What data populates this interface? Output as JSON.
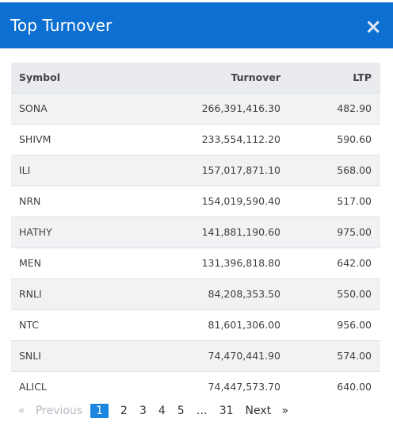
{
  "modal": {
    "title": "Top Turnover",
    "close_symbol": "×"
  },
  "table": {
    "headers": {
      "symbol": "Symbol",
      "turnover": "Turnover",
      "ltp": "LTP"
    },
    "rows": [
      {
        "symbol": "SONA",
        "turnover": "266,391,416.30",
        "ltp": "482.90"
      },
      {
        "symbol": "SHIVM",
        "turnover": "233,554,112.20",
        "ltp": "590.60"
      },
      {
        "symbol": "ILI",
        "turnover": "157,017,871.10",
        "ltp": "568.00"
      },
      {
        "symbol": "NRN",
        "turnover": "154,019,590.40",
        "ltp": "517.00"
      },
      {
        "symbol": "HATHY",
        "turnover": "141,881,190.60",
        "ltp": "975.00"
      },
      {
        "symbol": "MEN",
        "turnover": "131,396,818.80",
        "ltp": "642.00"
      },
      {
        "symbol": "RNLI",
        "turnover": "84,208,353.50",
        "ltp": "550.00"
      },
      {
        "symbol": "NTC",
        "turnover": "81,601,306.00",
        "ltp": "956.00"
      },
      {
        "symbol": "SNLI",
        "turnover": "74,470,441.90",
        "ltp": "574.00"
      },
      {
        "symbol": "ALICL",
        "turnover": "74,447,573.70",
        "ltp": "640.00"
      }
    ]
  },
  "pagination": {
    "prev_arrow": "«",
    "prev_label": "Previous",
    "pages": [
      "1",
      "2",
      "3",
      "4",
      "5"
    ],
    "ellipsis": "…",
    "last_page": "31",
    "next_label": "Next",
    "next_arrow": "»",
    "current_page": "1"
  },
  "colors": {
    "header_bg": "#0d6fd1",
    "active_page": "#1a86e0",
    "row_alt": "#f1f2f4"
  }
}
